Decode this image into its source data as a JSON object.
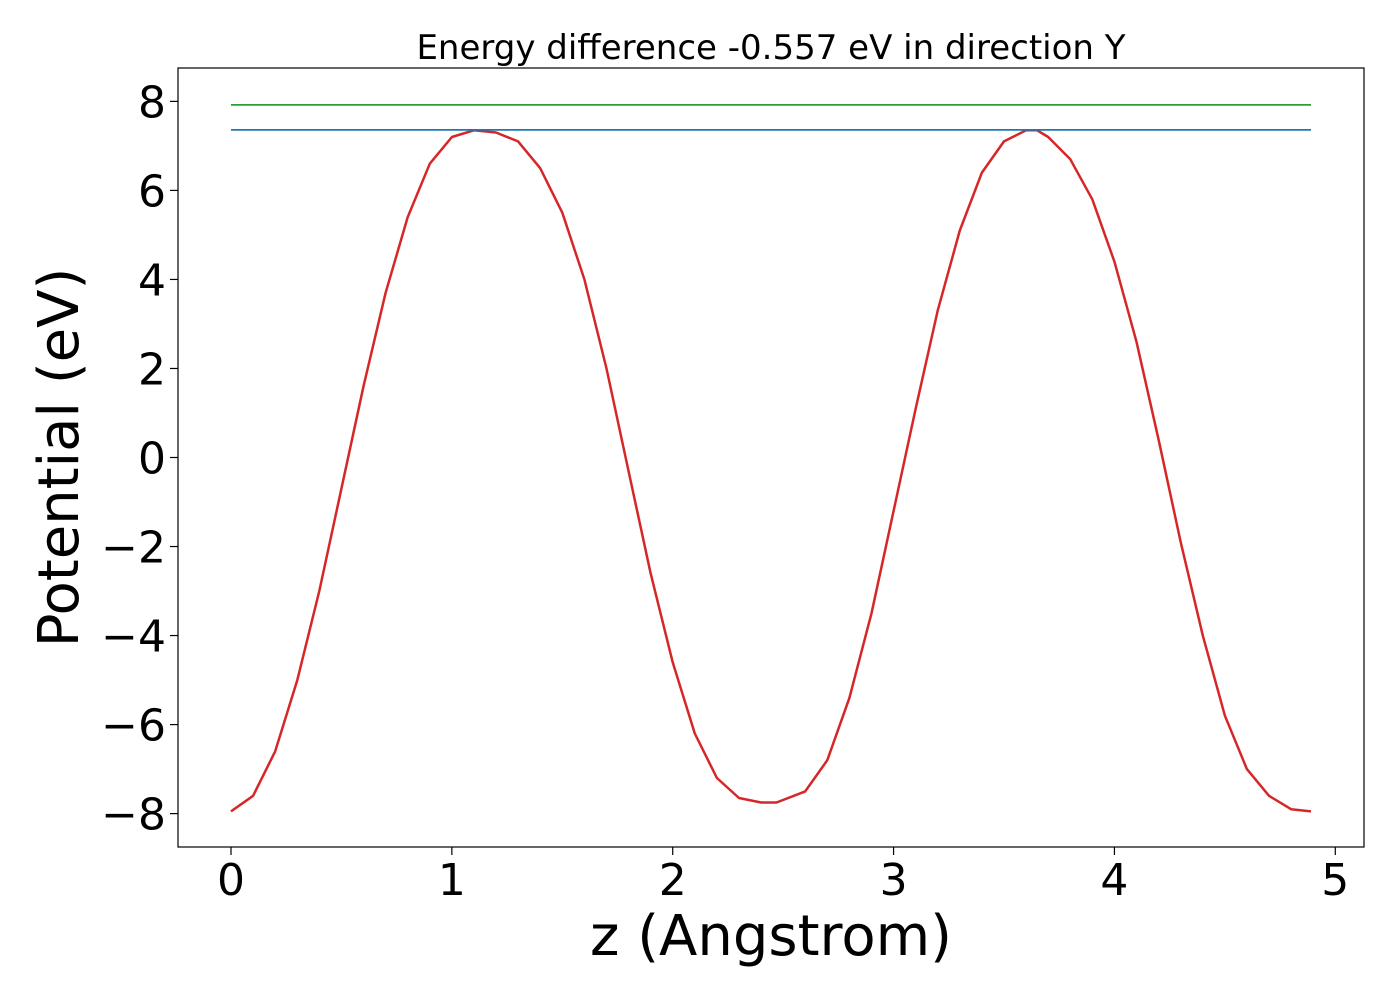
{
  "chart_data": {
    "type": "line",
    "title": "Energy difference -0.557 eV in direction Y",
    "xlabel": "z (Angstrom)",
    "ylabel": "Potential (eV)",
    "xlim": [
      -0.24,
      5.13
    ],
    "ylim": [
      -8.75,
      8.75
    ],
    "xticks": [
      0,
      1,
      2,
      3,
      4,
      5
    ],
    "xtick_labels": [
      "0",
      "1",
      "2",
      "3",
      "4",
      "5"
    ],
    "yticks": [
      -8,
      -6,
      -4,
      -2,
      0,
      2,
      4,
      6,
      8
    ],
    "ytick_labels": [
      "−8",
      "−6",
      "−4",
      "−2",
      "0",
      "2",
      "4",
      "6",
      "8"
    ],
    "grid": false,
    "legend": "none",
    "series": [
      {
        "color": "#d62728",
        "x": [
          0.0,
          0.1,
          0.2,
          0.3,
          0.4,
          0.5,
          0.6,
          0.7,
          0.8,
          0.9,
          1.0,
          1.1,
          1.2,
          1.3,
          1.4,
          1.5,
          1.6,
          1.7,
          1.8,
          1.9,
          2.0,
          2.1,
          2.2,
          2.3,
          2.4,
          2.47,
          2.6,
          2.7,
          2.8,
          2.9,
          3.0,
          3.1,
          3.2,
          3.3,
          3.4,
          3.5,
          3.6,
          3.65,
          3.7,
          3.8,
          3.9,
          4.0,
          4.1,
          4.2,
          4.3,
          4.4,
          4.5,
          4.6,
          4.7,
          4.8,
          4.89
        ],
        "y": [
          -7.95,
          -7.6,
          -6.6,
          -5.0,
          -3.0,
          -0.7,
          1.6,
          3.7,
          5.4,
          6.6,
          7.2,
          7.35,
          7.3,
          7.1,
          6.5,
          5.5,
          4.0,
          2.0,
          -0.3,
          -2.6,
          -4.6,
          -6.2,
          -7.2,
          -7.65,
          -7.75,
          -7.75,
          -7.5,
          -6.8,
          -5.4,
          -3.5,
          -1.2,
          1.1,
          3.3,
          5.1,
          6.4,
          7.1,
          7.35,
          7.35,
          7.2,
          6.7,
          5.8,
          4.4,
          2.6,
          0.4,
          -1.9,
          -4.0,
          -5.8,
          -7.0,
          -7.6,
          -7.9,
          -7.95
        ]
      },
      {
        "color": "#1f77b4",
        "x": [
          0.0,
          4.89
        ],
        "y": [
          7.36,
          7.36
        ]
      },
      {
        "color": "#2ca02c",
        "x": [
          0.0,
          4.89
        ],
        "y": [
          7.92,
          7.92
        ]
      }
    ]
  }
}
